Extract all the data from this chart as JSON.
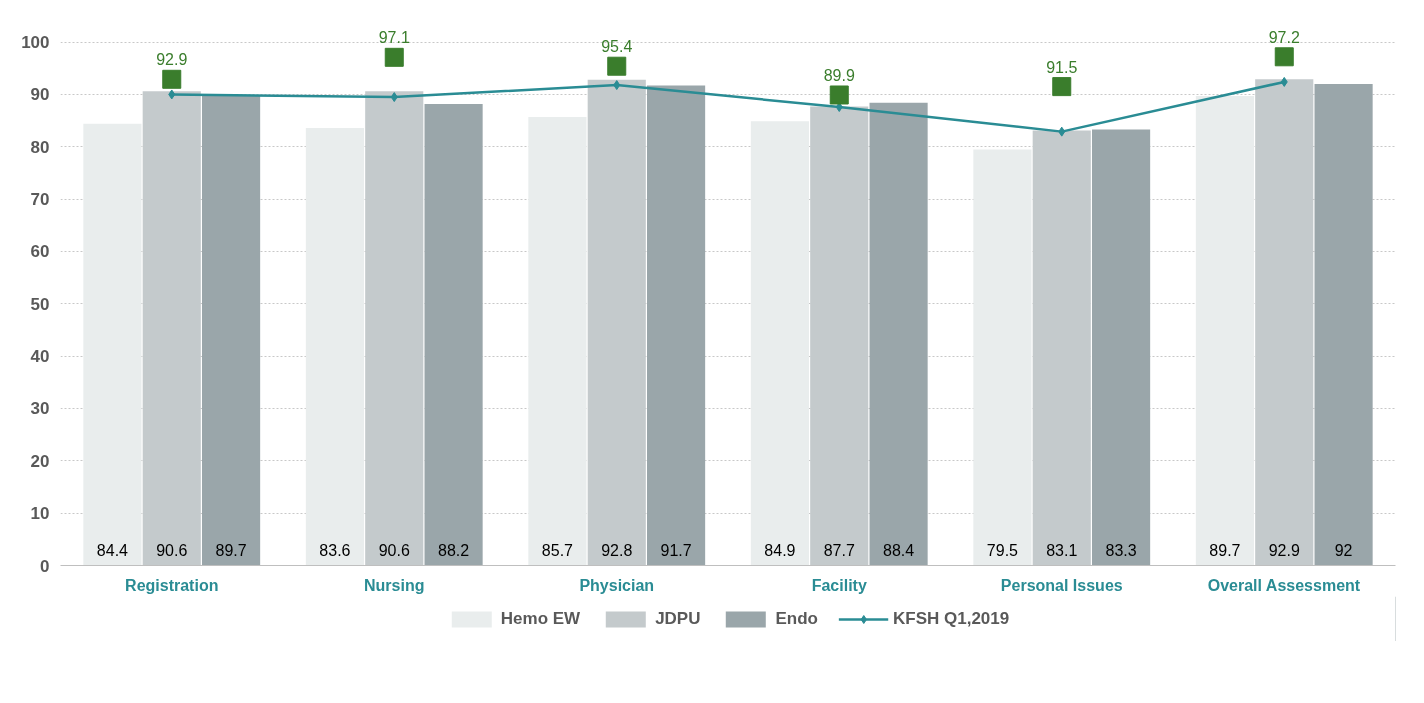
{
  "chart_data": {
    "type": "bar",
    "categories": [
      "Registration",
      "Nursing",
      "Physician",
      "Facility",
      "Personal Issues",
      "Overall Assessment"
    ],
    "ylim": [
      0,
      100
    ],
    "yticks": [
      0,
      10,
      20,
      30,
      40,
      50,
      60,
      70,
      80,
      90,
      100
    ],
    "grid": "y",
    "legend": "bottom",
    "series": [
      {
        "name": "Hemo EW",
        "color": "#e9eded",
        "values": [
          84.4,
          83.6,
          85.7,
          84.9,
          79.5,
          89.7
        ],
        "value_labels": [
          "84.4",
          "83.6",
          "85.7",
          "84.9",
          "79.5",
          "89.7"
        ]
      },
      {
        "name": "JDPU",
        "color": "#c4cacc",
        "values": [
          90.6,
          90.6,
          92.8,
          87.7,
          83.1,
          92.9
        ],
        "value_labels": [
          "90.6",
          "90.6",
          "92.8",
          "87.7",
          "83.1",
          "92.9"
        ]
      },
      {
        "name": "Endo",
        "color": "#9aa6aa",
        "values": [
          89.7,
          88.2,
          91.7,
          88.4,
          83.3,
          92
        ],
        "value_labels": [
          "89.7",
          "88.2",
          "91.7",
          "88.4",
          "83.3",
          "92"
        ]
      },
      {
        "name": "KFSH Q1,2019",
        "type": "line",
        "color": "#2a8c94",
        "marker": "diamond",
        "line_style": "solid",
        "values": [
          90.0,
          89.5,
          91.8,
          87.6,
          82.9,
          92.4
        ]
      },
      {
        "type": "scatter",
        "color": "#3a7d2c",
        "marker": "square",
        "values": [
          92.9,
          97.1,
          95.4,
          89.9,
          91.5,
          97.2
        ],
        "value_labels": [
          "92.9",
          "97.1",
          "95.4",
          "89.9",
          "91.5",
          "97.2"
        ]
      }
    ]
  }
}
